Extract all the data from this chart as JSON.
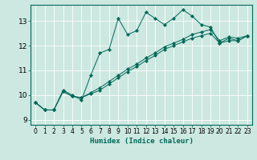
{
  "xlabel": "Humidex (Indice chaleur)",
  "ylabel": "",
  "bg_color": "#cce8e0",
  "line_color": "#006858",
  "marker": "D",
  "marker_size": 2.2,
  "xlim": [
    -0.5,
    23.5
  ],
  "ylim": [
    8.8,
    13.65
  ],
  "yticks": [
    9,
    10,
    11,
    12,
    13
  ],
  "xticks": [
    0,
    1,
    2,
    3,
    4,
    5,
    6,
    7,
    8,
    9,
    10,
    11,
    12,
    13,
    14,
    15,
    16,
    17,
    18,
    19,
    20,
    21,
    22,
    23
  ],
  "series": [
    {
      "x": [
        0,
        1,
        2,
        3,
        4,
        5,
        6,
        7,
        8,
        9,
        10,
        11,
        12,
        13,
        14,
        15,
        16,
        17,
        18,
        19,
        20,
        21,
        22,
        23
      ],
      "y": [
        9.7,
        9.4,
        9.4,
        10.2,
        10.0,
        9.8,
        10.8,
        11.7,
        11.85,
        13.1,
        12.45,
        12.6,
        13.35,
        13.1,
        12.85,
        13.1,
        13.45,
        13.2,
        12.85,
        12.75,
        12.1,
        12.3,
        12.2,
        12.4
      ]
    },
    {
      "x": [
        0,
        1,
        2,
        3,
        4,
        5,
        6,
        7,
        8,
        9,
        10,
        11,
        12,
        13,
        14,
        15,
        16,
        17,
        18,
        19,
        20,
        21,
        22,
        23
      ],
      "y": [
        9.7,
        9.4,
        9.4,
        10.15,
        9.95,
        9.9,
        10.05,
        10.2,
        10.45,
        10.7,
        10.95,
        11.15,
        11.4,
        11.6,
        11.85,
        12.0,
        12.15,
        12.3,
        12.4,
        12.5,
        12.1,
        12.2,
        12.2,
        12.4
      ]
    },
    {
      "x": [
        0,
        1,
        2,
        3,
        4,
        5,
        6,
        7,
        8,
        9,
        10,
        11,
        12,
        13,
        14,
        15,
        16,
        17,
        18,
        19,
        20,
        21,
        22,
        23
      ],
      "y": [
        9.7,
        9.4,
        9.4,
        10.15,
        9.95,
        9.9,
        10.1,
        10.3,
        10.55,
        10.8,
        11.05,
        11.25,
        11.5,
        11.7,
        11.95,
        12.1,
        12.25,
        12.45,
        12.55,
        12.65,
        12.2,
        12.35,
        12.3,
        12.4
      ]
    }
  ]
}
